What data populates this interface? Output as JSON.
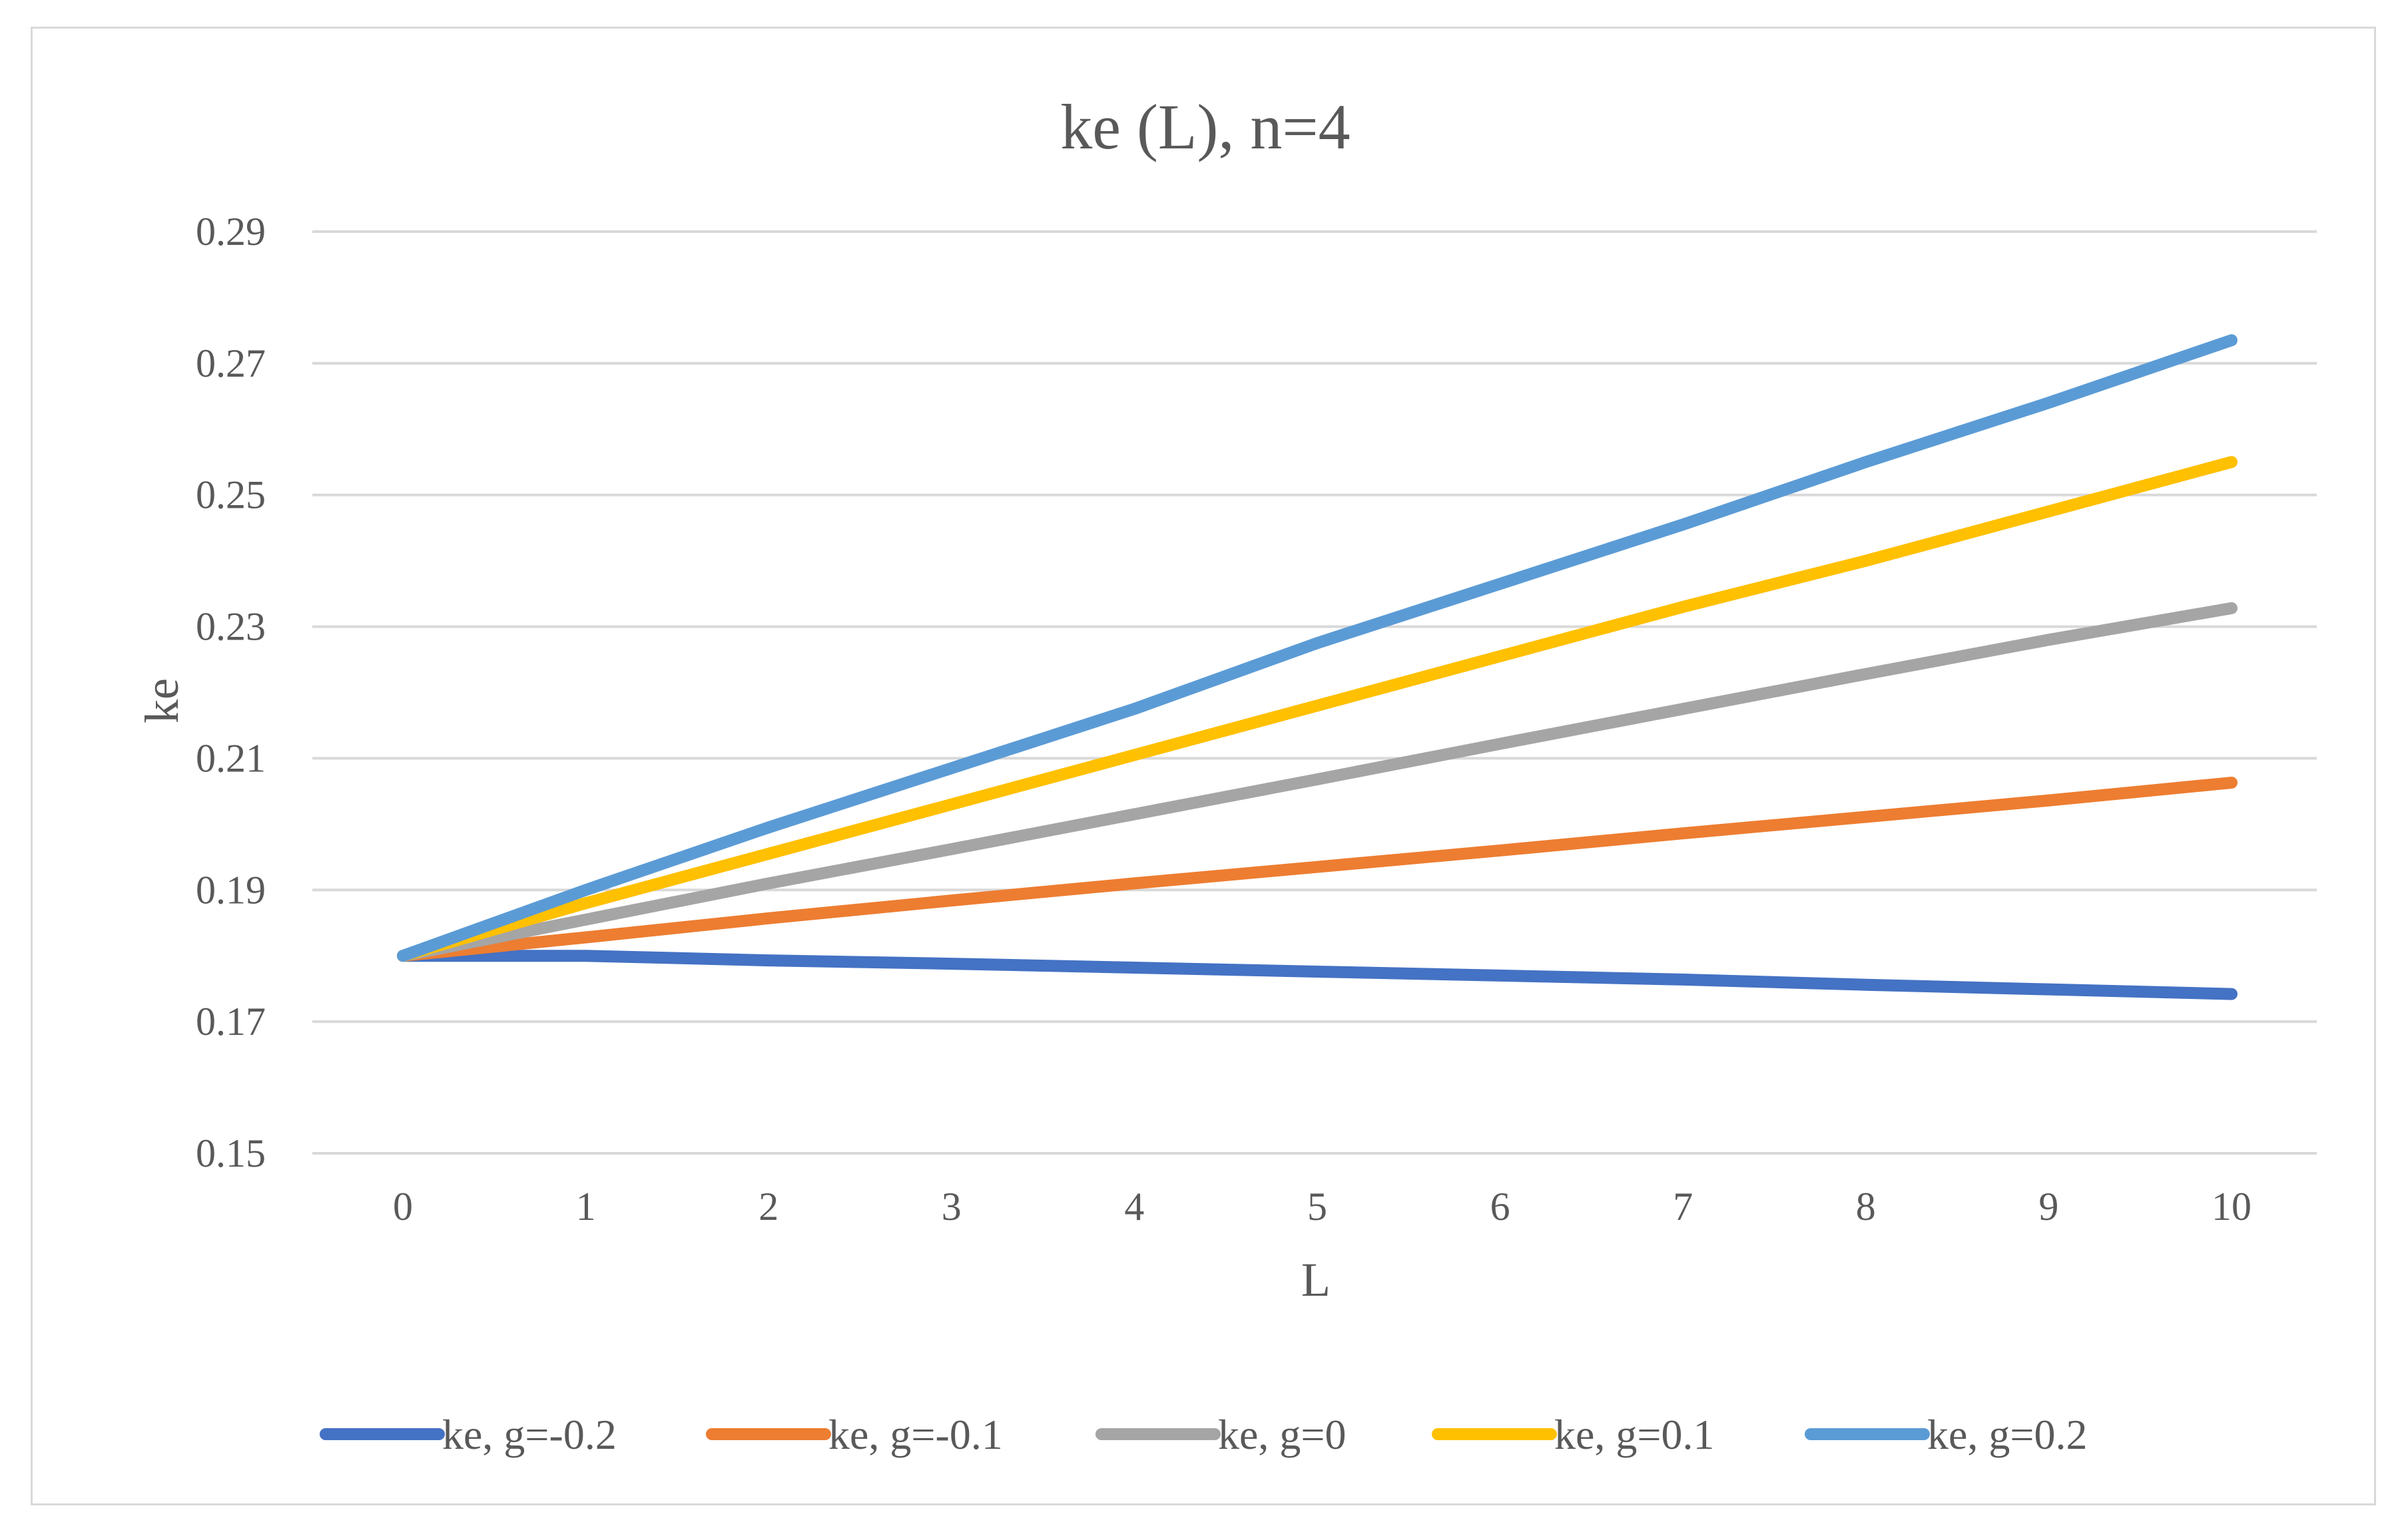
{
  "chart_data": {
    "type": "line",
    "title": "ke (L), n=4",
    "xlabel": "L",
    "ylabel": "ke",
    "x": [
      0,
      1,
      2,
      3,
      4,
      5,
      6,
      7,
      8,
      9,
      10
    ],
    "ylim": [
      0.15,
      0.29
    ],
    "yticks": [
      0.15,
      0.17,
      0.19,
      0.21,
      0.23,
      0.25,
      0.27,
      0.29
    ],
    "ytick_labels": [
      "0.15",
      "0.17",
      "0.19",
      "0.21",
      "0.23",
      "0.25",
      "0.27",
      "0.29"
    ],
    "xtick_labels": [
      "0",
      "1",
      "2",
      "3",
      "4",
      "5",
      "6",
      "7",
      "8",
      "9",
      "10"
    ],
    "grid": "horizontal",
    "legend_position": "bottom",
    "series": [
      {
        "name": "ke, g=-0.2",
        "color": "#4472c4",
        "values": [
          0.18,
          0.18,
          0.1793,
          0.1788,
          0.1782,
          0.1776,
          0.177,
          0.1764,
          0.1756,
          0.1749,
          0.1742
        ]
      },
      {
        "name": "ke, g=-0.1",
        "color": "#ed7d31",
        "values": [
          0.18,
          0.1828,
          0.1857,
          0.1884,
          0.191,
          0.1935,
          0.196,
          0.1986,
          0.2011,
          0.2036,
          0.2063
        ]
      },
      {
        "name": "ke, g=0",
        "color": "#a5a5a5",
        "values": [
          0.18,
          0.1855,
          0.191,
          0.1962,
          0.2015,
          0.2068,
          0.2122,
          0.2175,
          0.2228,
          0.228,
          0.2328
        ]
      },
      {
        "name": "ke, g=0.1",
        "color": "#ffc000",
        "values": [
          0.18,
          0.188,
          0.1955,
          0.203,
          0.2105,
          0.218,
          0.2255,
          0.233,
          0.24,
          0.2475,
          0.255
        ]
      },
      {
        "name": "ke, g=0.2",
        "color": "#5b9bd5",
        "values": [
          0.18,
          0.19,
          0.1995,
          0.2085,
          0.2175,
          0.2275,
          0.2365,
          0.2455,
          0.255,
          0.264,
          0.2735
        ]
      }
    ]
  }
}
